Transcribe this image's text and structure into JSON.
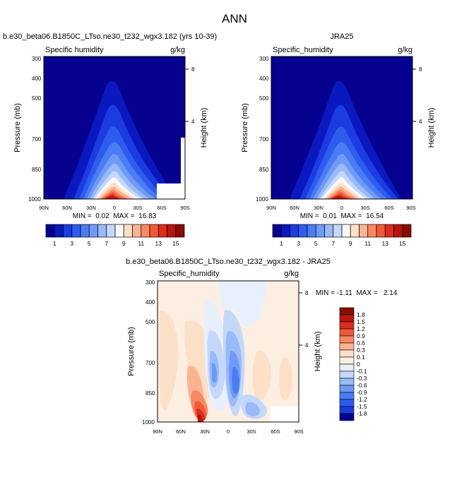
{
  "figure": {
    "title": "ANN"
  },
  "colorbar_top": {
    "labels": [
      "1",
      "3",
      "5",
      "7",
      "9",
      "11",
      "13",
      "15"
    ],
    "colors": [
      "#06028f",
      "#0a18c0",
      "#1a3ce0",
      "#2f5cee",
      "#4a7cf4",
      "#6f9af6",
      "#98baf8",
      "#c4d8fa",
      "#f8f8f8",
      "#fde0c8",
      "#fbb493",
      "#f88862",
      "#f0593a",
      "#dc2d1c",
      "#b91410",
      "#8b0b06"
    ]
  },
  "colorbar_bottom": {
    "labels": [
      "1.8",
      "1.5",
      "1.2",
      "0.9",
      "0.6",
      "0.3",
      "0.1",
      "0",
      "-0.1",
      "-0.3",
      "-0.6",
      "-0.9",
      "-1.2",
      "-1.5",
      "-1.8"
    ],
    "colors": [
      "#8b0b06",
      "#b91410",
      "#dc2d1c",
      "#f0593a",
      "#f88862",
      "#fbb493",
      "#fde0c8",
      "#fdeee2",
      "#e7f0fb",
      "#c4d8fa",
      "#98baf8",
      "#6f9af6",
      "#4a7cf4",
      "#2f5cee",
      "#1a3ce0",
      "#06028f"
    ]
  },
  "chart_data": [
    {
      "type": "heatmap",
      "title": "b.e30_beta06.B1850C_LTso.ne30_t232_wgx3.182 (yrs 10-39)",
      "field_label": "Specific humidity",
      "units": "g/kg",
      "xlabel": "",
      "ylabel": "Pressure (mb)",
      "ylabel_right": "Height (km)",
      "x_ticks": [
        "90N",
        "60N",
        "30N",
        "0",
        "30S",
        "60S",
        "90S"
      ],
      "y_ticks": [
        "300",
        "400",
        "500",
        "700",
        "850",
        "1000"
      ],
      "y2_ticks": [
        "8",
        "4"
      ],
      "ylim": [
        1000,
        300
      ],
      "xlim": [
        90,
        -90
      ],
      "min": 0.02,
      "max": 16.83,
      "stats_text": "MIN =  0.02  MAX =  16.83"
    },
    {
      "type": "heatmap",
      "title": "JRA25",
      "field_label": "Specific_humidity",
      "units": "g/kg",
      "xlabel": "",
      "ylabel": "Pressure (mb)",
      "ylabel_right": "Height (km)",
      "x_ticks": [
        "90N",
        "60N",
        "30N",
        "0",
        "30S",
        "60S",
        "90S"
      ],
      "y_ticks": [
        "300",
        "400",
        "500",
        "700",
        "850",
        "1000"
      ],
      "y2_ticks": [
        "8",
        "4"
      ],
      "ylim": [
        1000,
        300
      ],
      "xlim": [
        90,
        -90
      ],
      "min": 0.01,
      "max": 16.54,
      "stats_text": "MIN =  0.01  MAX =  16.54"
    },
    {
      "type": "heatmap",
      "title": "b.e30_beta06.B1850C_LTso.ne30_t232_wgx3.182 - JRA25",
      "field_label": "Specific_humidity",
      "units": "g/kg",
      "xlabel": "",
      "ylabel": "Pressure (mb)",
      "ylabel_right": "Height (km)",
      "x_ticks": [
        "90N",
        "60N",
        "30N",
        "0",
        "30S",
        "60S",
        "90S"
      ],
      "y_ticks": [
        "300",
        "400",
        "500",
        "700",
        "850",
        "1000"
      ],
      "y2_ticks": [
        "8",
        "4"
      ],
      "ylim": [
        1000,
        300
      ],
      "xlim": [
        90,
        -90
      ],
      "min": -1.11,
      "max": 2.14,
      "stats_text": "MIN = -1.11  MAX =   2.14"
    }
  ]
}
